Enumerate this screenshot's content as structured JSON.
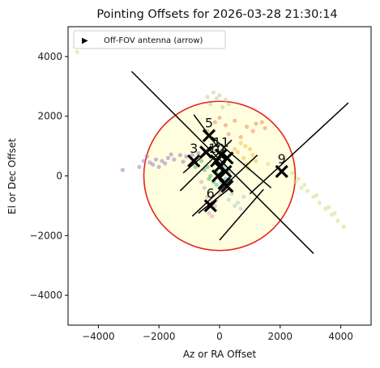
{
  "chart_data": {
    "type": "scatter",
    "title": "Pointing Offsets for 2026-03-28 21:30:14",
    "xlabel": "Az or RA Offset",
    "ylabel": "El or Dec Offset",
    "xlim": [
      -5000,
      5000
    ],
    "ylim": [
      -5000,
      5000
    ],
    "xticks": [
      -4000,
      -2000,
      0,
      2000,
      4000
    ],
    "yticks": [
      -4000,
      -2000,
      0,
      2000,
      4000
    ],
    "xtick_labels": [
      "−4000",
      "−2000",
      "0",
      "2000",
      "4000"
    ],
    "ytick_labels": [
      "−4000",
      "−2000",
      "0",
      "2000",
      "4000"
    ],
    "grid": false,
    "legend": {
      "placement": "top-left",
      "entries": [
        {
          "label": "Off-FOV antenna (arrow)",
          "marker": "▶"
        }
      ]
    },
    "fov_circle": {
      "center": [
        0,
        0
      ],
      "radius": 2500,
      "edge_color": "#e8211b",
      "fill_color": "#ffffe0"
    },
    "antennas": [
      {
        "label": "5",
        "x": -350,
        "y": 1350
      },
      {
        "label": "3",
        "x": -850,
        "y": 500
      },
      {
        "label": "11",
        "x": 50,
        "y": 700
      },
      {
        "label": "10",
        "x": -100,
        "y": 500
      },
      {
        "label": "9",
        "x": 2050,
        "y": 150
      },
      {
        "label": "6",
        "x": -300,
        "y": -1000
      },
      {
        "label": "",
        "x": -450,
        "y": 800
      },
      {
        "label": "",
        "x": 250,
        "y": 600
      },
      {
        "label": "",
        "x": 0,
        "y": 300
      },
      {
        "label": "",
        "x": 200,
        "y": 150
      },
      {
        "label": "",
        "x": -50,
        "y": 0
      },
      {
        "label": "",
        "x": 250,
        "y": -350
      },
      {
        "label": "",
        "x": 150,
        "y": -250
      }
    ],
    "cross_lines": [
      {
        "x": [
          -2900,
          3100
        ],
        "y": [
          3500,
          -2600
        ]
      },
      {
        "x": [
          1000,
          4250
        ],
        "y": [
          -600,
          2450
        ]
      },
      {
        "x": [
          -850,
          -50
        ],
        "y": [
          2050,
          950
        ]
      },
      {
        "x": [
          -250,
          1700
        ],
        "y": [
          1300,
          -400
        ]
      },
      {
        "x": [
          -1200,
          -50
        ],
        "y": [
          100,
          1100
        ]
      },
      {
        "x": [
          -700,
          350
        ],
        "y": [
          -1250,
          -400
        ]
      },
      {
        "x": [
          -900,
          1250
        ],
        "y": [
          -1350,
          700
        ]
      },
      {
        "x": [
          0,
          1450
        ],
        "y": [
          -2150,
          -450
        ]
      },
      {
        "x": [
          -1300,
          400
        ],
        "y": [
          -500,
          1200
        ]
      }
    ],
    "trails": [
      {
        "color": "#9b7ec8",
        "points": [
          [
            -2500,
            500
          ],
          [
            -2300,
            450
          ],
          [
            -2100,
            550
          ],
          [
            -1900,
            500
          ],
          [
            -1700,
            600
          ],
          [
            -1500,
            550
          ],
          [
            -1300,
            700
          ],
          [
            -1100,
            650
          ],
          [
            -2650,
            300
          ],
          [
            -2400,
            650
          ],
          [
            -1800,
            420
          ],
          [
            -1200,
            480
          ],
          [
            -900,
            700
          ],
          [
            -700,
            760
          ],
          [
            -2200,
            380
          ],
          [
            -1600,
            720
          ],
          [
            -3200,
            200
          ],
          [
            -2000,
            300
          ]
        ]
      },
      {
        "color": "#cfe07a",
        "points": [
          [
            2200,
            0
          ],
          [
            2500,
            -200
          ],
          [
            2700,
            -400
          ],
          [
            2900,
            -500
          ],
          [
            3100,
            -700
          ],
          [
            3300,
            -900
          ],
          [
            3500,
            -1100
          ],
          [
            3700,
            -1300
          ],
          [
            3900,
            -1500
          ],
          [
            4100,
            -1700
          ],
          [
            2400,
            100
          ],
          [
            2800,
            -300
          ],
          [
            3200,
            -650
          ],
          [
            3600,
            -1050
          ],
          [
            3800,
            -1250
          ],
          [
            1600,
            400
          ],
          [
            2600,
            -100
          ],
          [
            -4700,
            4150
          ]
        ]
      },
      {
        "color": "#f08a5a",
        "points": [
          [
            -150,
            1800
          ],
          [
            0,
            1950
          ],
          [
            200,
            1700
          ],
          [
            500,
            1850
          ],
          [
            900,
            1650
          ],
          [
            1200,
            1750
          ],
          [
            1500,
            1600
          ],
          [
            -400,
            1500
          ],
          [
            300,
            1400
          ],
          [
            700,
            1300
          ],
          [
            1100,
            1500
          ],
          [
            1400,
            1800
          ]
        ]
      },
      {
        "color": "#e0a0b0",
        "points": [
          [
            -500,
            -400
          ],
          [
            -400,
            -700
          ],
          [
            -300,
            -900
          ],
          [
            -200,
            -1100
          ],
          [
            -350,
            -1250
          ],
          [
            -100,
            -800
          ],
          [
            0,
            -600
          ],
          [
            -600,
            -200
          ],
          [
            -250,
            -1350
          ],
          [
            -150,
            -1000
          ]
        ]
      },
      {
        "color": "#4fb36a",
        "points": [
          [
            -400,
            300
          ],
          [
            -300,
            0
          ],
          [
            -200,
            -200
          ],
          [
            -500,
            200
          ],
          [
            -100,
            100
          ],
          [
            -600,
            500
          ],
          [
            -300,
            650
          ],
          [
            100,
            50
          ],
          [
            -800,
            300
          ],
          [
            -350,
            -100
          ]
        ]
      },
      {
        "color": "#4fb8c9",
        "points": [
          [
            0,
            0
          ],
          [
            100,
            200
          ],
          [
            200,
            -100
          ],
          [
            300,
            100
          ],
          [
            -100,
            -300
          ],
          [
            150,
            350
          ],
          [
            50,
            -200
          ],
          [
            250,
            250
          ],
          [
            350,
            -150
          ],
          [
            0,
            400
          ]
        ]
      },
      {
        "color": "#f0c040",
        "points": [
          [
            600,
            800
          ],
          [
            800,
            600
          ],
          [
            900,
            400
          ],
          [
            1000,
            900
          ],
          [
            700,
            1100
          ],
          [
            1100,
            700
          ],
          [
            500,
            900
          ],
          [
            1200,
            500
          ],
          [
            850,
            1000
          ],
          [
            950,
            250
          ]
        ]
      },
      {
        "color": "#c8c8a8",
        "points": [
          [
            -200,
            2800
          ],
          [
            -100,
            2600
          ],
          [
            0,
            2700
          ],
          [
            -300,
            2400
          ],
          [
            100,
            2300
          ],
          [
            200,
            2550
          ],
          [
            -400,
            2650
          ],
          [
            300,
            2400
          ]
        ]
      },
      {
        "color": "#a7c9e0",
        "points": [
          [
            200,
            -500
          ],
          [
            300,
            -800
          ],
          [
            500,
            -1000
          ],
          [
            700,
            -1100
          ],
          [
            400,
            -600
          ],
          [
            600,
            -900
          ],
          [
            800,
            -700
          ]
        ]
      }
    ]
  }
}
